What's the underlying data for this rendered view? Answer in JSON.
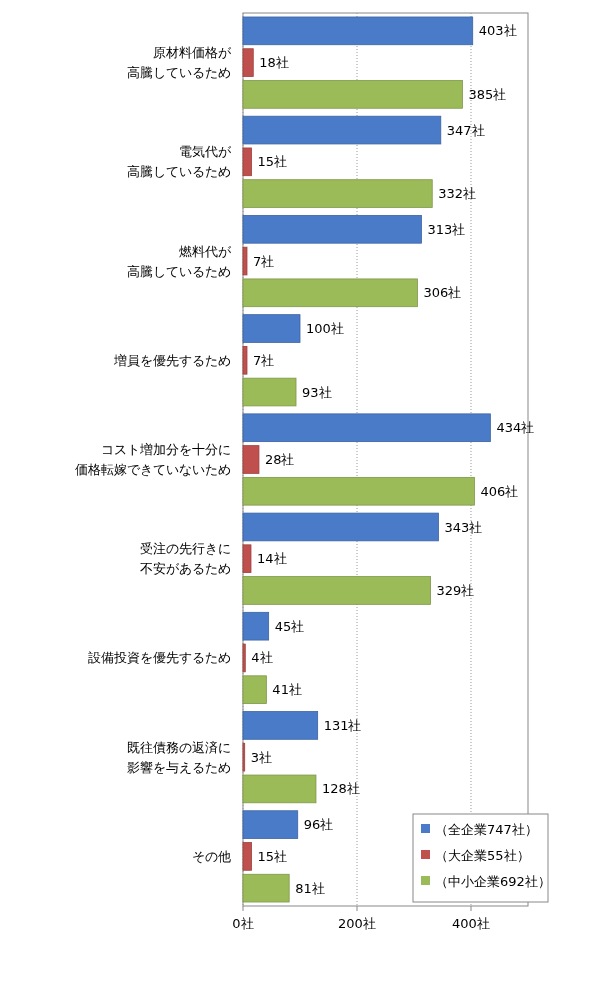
{
  "chart_data": {
    "type": "bar",
    "orientation": "horizontal",
    "categories": [
      "原材料価格が高騰しているため",
      "電気代が高騰しているため",
      "燃料代が高騰しているため",
      "増員を優先するため",
      "コスト増加分を十分に価格転嫁できていないため",
      "受注の先行きに不安があるため",
      "設備投資を優先するため",
      "既往債務の返済に影響を与えるため",
      "その他"
    ],
    "series": [
      {
        "name": "（全企業747社）",
        "color": "#4a7bc8",
        "values": [
          403,
          347,
          313,
          100,
          434,
          343,
          45,
          131,
          96
        ],
        "value_labels": [
          "403社",
          "347社",
          "313社",
          "100社",
          "434社",
          "343社",
          "45社",
          "131社",
          "96社"
        ]
      },
      {
        "name": "（大企業55社）",
        "color": "#c0504d",
        "values": [
          18,
          15,
          7,
          7,
          28,
          14,
          4,
          3,
          15
        ],
        "value_labels": [
          "18社",
          "15社",
          "7社",
          "7社",
          "28社",
          "14社",
          "4社",
          "3社",
          "15社"
        ]
      },
      {
        "name": "（中小企業692社）",
        "color": "#9bbb59",
        "values": [
          385,
          332,
          306,
          93,
          406,
          329,
          41,
          128,
          81
        ],
        "value_labels": [
          "385社",
          "332社",
          "306社",
          "93社",
          "406社",
          "329社",
          "41社",
          "128社",
          "81社"
        ]
      }
    ],
    "xlim": [
      0,
      500
    ],
    "xticks": [
      {
        "value": 0,
        "label": "0社"
      },
      {
        "value": 200,
        "label": "200社"
      },
      {
        "value": 400,
        "label": "400社"
      }
    ],
    "grid": "x",
    "legend": "bottom right"
  }
}
